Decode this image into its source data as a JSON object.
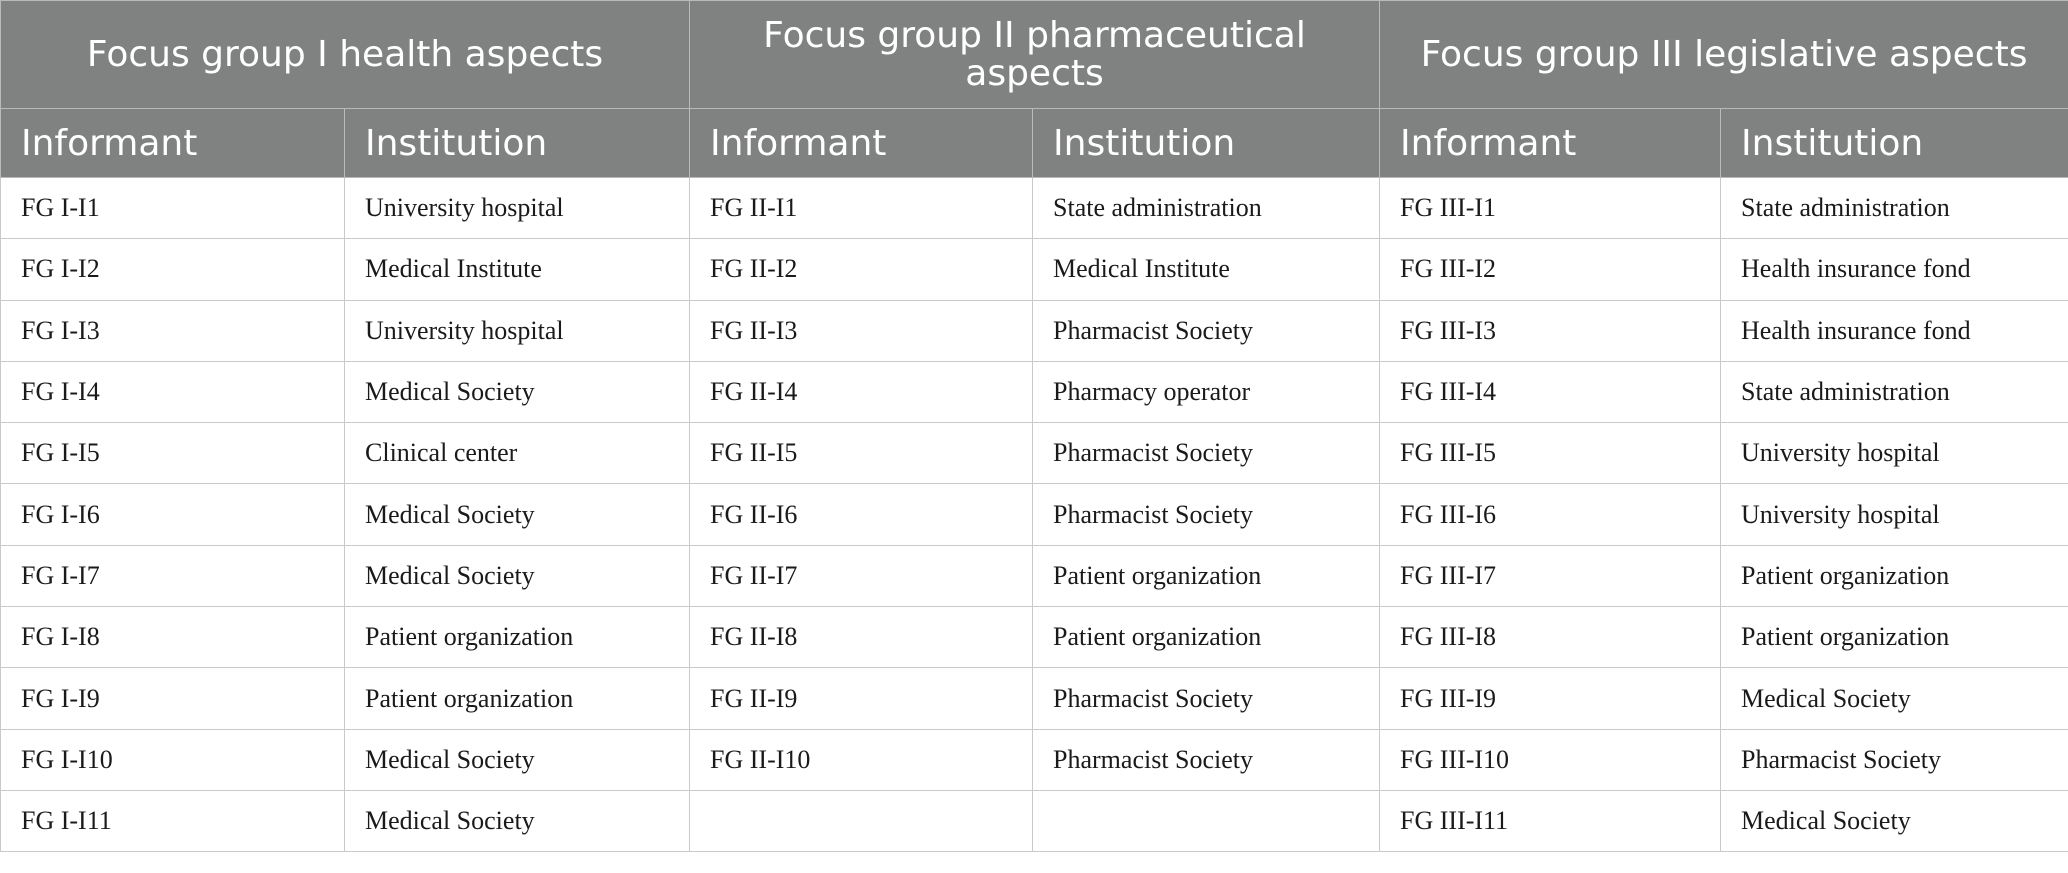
{
  "groups": [
    "Focus group I health aspects",
    "Focus group II pharmaceutical aspects",
    "Focus group III legislative aspects"
  ],
  "subheaders": {
    "informant": "Informant",
    "institution": "Institution"
  },
  "rows": [
    [
      "FG I-I1",
      "University hospital",
      "FG II-I1",
      "State administration",
      "FG III-I1",
      "State administration"
    ],
    [
      "FG I-I2",
      "Medical Institute",
      "FG II-I2",
      "Medical Institute",
      "FG III-I2",
      "Health insurance fond"
    ],
    [
      "FG I-I3",
      "University hospital",
      "FG II-I3",
      "Pharmacist Society",
      "FG III-I3",
      "Health insurance fond"
    ],
    [
      "FG I-I4",
      "Medical Society",
      "FG II-I4",
      "Pharmacy operator",
      "FG III-I4",
      "State administration"
    ],
    [
      "FG I-I5",
      "Clinical center",
      "FG II-I5",
      "Pharmacist Society",
      "FG III-I5",
      "University hospital"
    ],
    [
      "FG I-I6",
      "Medical Society",
      "FG II-I6",
      "Pharmacist Society",
      "FG III-I6",
      "University hospital"
    ],
    [
      "FG I-I7",
      "Medical Society",
      "FG II-I7",
      "Patient organization",
      "FG III-I7",
      "Patient organization"
    ],
    [
      "FG I-I8",
      "Patient organization",
      "FG II-I8",
      "Patient organization",
      "FG III-I8",
      "Patient organization"
    ],
    [
      "FG I-I9",
      "Patient organization",
      "FG II-I9",
      "Pharmacist Society",
      "FG III-I9",
      "Medical Society"
    ],
    [
      "FG I-I10",
      "Medical Society",
      "FG II-I10",
      "Pharmacist Society",
      "FG III-I10",
      "Pharmacist Society"
    ],
    [
      "FG I-I11",
      "Medical Society",
      "",
      "",
      "FG III-I11",
      "Medical Society"
    ]
  ]
}
